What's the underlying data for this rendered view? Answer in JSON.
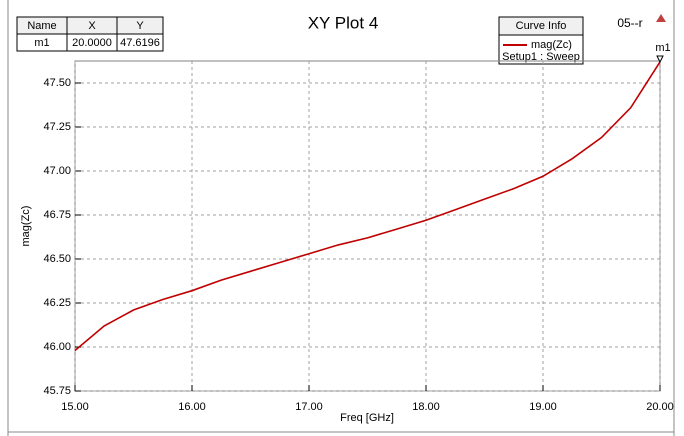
{
  "chart_data": {
    "type": "line",
    "title": "XY Plot 4",
    "x_label": "Freq [GHz]",
    "y_label": "mag(Zc)",
    "corner_label": "05--r",
    "x": [
      15.0,
      15.25,
      15.5,
      15.75,
      16.0,
      16.25,
      16.5,
      16.75,
      17.0,
      17.25,
      17.5,
      17.75,
      18.0,
      18.25,
      18.5,
      18.75,
      19.0,
      19.25,
      19.5,
      19.75,
      20.0
    ],
    "series": [
      {
        "name": "mag(Zc)",
        "color": "#c00000",
        "values": [
          45.98,
          46.12,
          46.21,
          46.27,
          46.32,
          46.38,
          46.43,
          46.48,
          46.53,
          46.58,
          46.62,
          46.67,
          46.72,
          46.78,
          46.84,
          46.9,
          46.97,
          47.07,
          47.19,
          47.36,
          47.6196
        ]
      }
    ],
    "legend_title": "Curve Info",
    "legend_subtitle": "Setup1 : Sweep",
    "xlim": [
      15.0,
      20.0
    ],
    "xticks": [
      {
        "value": 15,
        "label": "15.00"
      },
      {
        "value": 16,
        "label": "16.00"
      },
      {
        "value": 17,
        "label": "17.00"
      },
      {
        "value": 18,
        "label": "18.00"
      },
      {
        "value": 19,
        "label": "19.00"
      },
      {
        "value": 20,
        "label": "20.00"
      }
    ],
    "ylim": [
      45.75,
      47.625
    ],
    "yticks": [
      45.75,
      {
        "value": 46,
        "label": "46.00"
      },
      46.25,
      {
        "value": 46.5,
        "label": "46.50"
      },
      46.75,
      {
        "value": 47,
        "label": "47.00"
      },
      47.25,
      {
        "value": 47.5,
        "label": "47.50"
      }
    ],
    "grid": true,
    "marker_table": {
      "columns": [
        "Name",
        "X",
        "Y"
      ],
      "rows": [
        [
          "m1",
          "20.0000",
          "47.6196"
        ]
      ]
    }
  }
}
